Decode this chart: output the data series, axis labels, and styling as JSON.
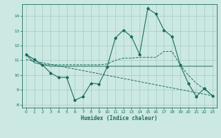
{
  "xlabel": "Humidex (Indice chaleur)",
  "xlim": [
    -0.5,
    23.5
  ],
  "ylim": [
    7.8,
    14.8
  ],
  "yticks": [
    8,
    9,
    10,
    11,
    12,
    13,
    14
  ],
  "xticks": [
    0,
    1,
    2,
    3,
    4,
    5,
    6,
    7,
    8,
    9,
    10,
    11,
    12,
    13,
    14,
    15,
    16,
    17,
    18,
    19,
    20,
    21,
    22,
    23
  ],
  "bg_color": "#cce8e2",
  "line_color": "#1a6b5e",
  "grid_color": "#aacfca",
  "line1_x": [
    0,
    1,
    2,
    3,
    4,
    5,
    6,
    7,
    8,
    9,
    10,
    11,
    12,
    13,
    14,
    15,
    16,
    17,
    18,
    19,
    20,
    21,
    22,
    23
  ],
  "line1_y": [
    11.4,
    11.05,
    10.7,
    10.15,
    9.85,
    9.85,
    8.3,
    8.55,
    9.45,
    9.4,
    10.55,
    12.5,
    13.05,
    12.6,
    11.4,
    14.5,
    14.15,
    13.05,
    12.6,
    10.7,
    9.45,
    8.55,
    9.1,
    8.6
  ],
  "line2_x": [
    0,
    1,
    2,
    3,
    4,
    5,
    6,
    7,
    8,
    9,
    10,
    11,
    12,
    13,
    14,
    15,
    16,
    17,
    18,
    19,
    20,
    21,
    22,
    23
  ],
  "line2_y": [
    11.4,
    11.05,
    10.7,
    10.7,
    10.7,
    10.7,
    10.7,
    10.7,
    10.7,
    10.7,
    10.75,
    11.0,
    11.15,
    11.15,
    11.2,
    11.2,
    11.2,
    11.6,
    11.6,
    10.7,
    10.0,
    9.45,
    9.05,
    8.6
  ],
  "line3_x": [
    0,
    1,
    2,
    3,
    4,
    5,
    6,
    7,
    8,
    9,
    10,
    11,
    12,
    13,
    14,
    15,
    16,
    17,
    18,
    19,
    20,
    21,
    22,
    23
  ],
  "line3_y": [
    11.35,
    10.85,
    10.7,
    10.6,
    10.6,
    10.6,
    10.6,
    10.6,
    10.6,
    10.6,
    10.6,
    10.6,
    10.6,
    10.6,
    10.6,
    10.6,
    10.6,
    10.6,
    10.6,
    10.6,
    10.6,
    10.6,
    10.6,
    10.6
  ],
  "line4_x": [
    0,
    23
  ],
  "line4_y": [
    11.05,
    8.6
  ]
}
